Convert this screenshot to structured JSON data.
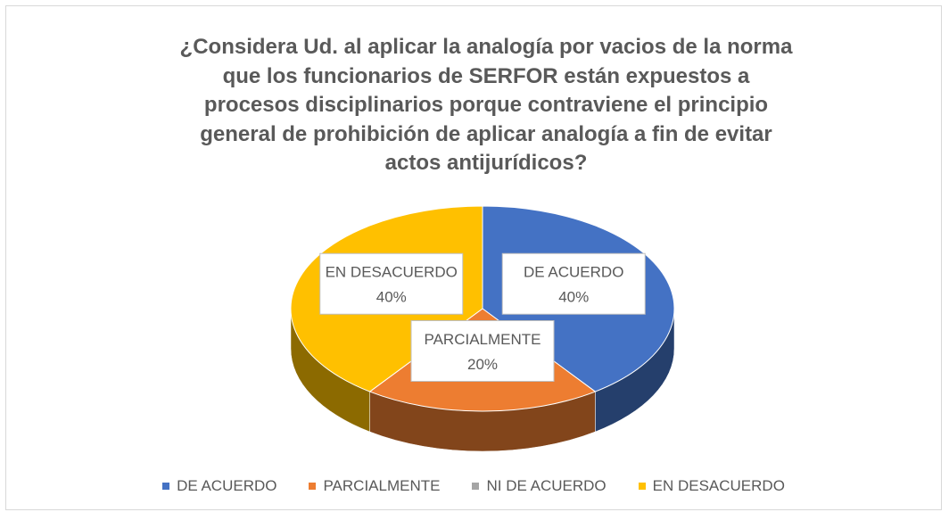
{
  "chart_data": {
    "type": "pie",
    "title": "¿Considera Ud. al aplicar la analogía por vacios de la norma que los funcionarios de SERFOR están expuestos a procesos disciplinarios porque contraviene el principio general de prohibición de aplicar analogía a fin de evitar actos antijurídicos?",
    "categories": [
      "DE ACUERDO",
      "PARCIALMENTE",
      "NI DE ACUERDO",
      "EN DESACUERDO"
    ],
    "values": [
      40,
      20,
      0,
      40
    ],
    "value_labels": [
      "40%",
      "20%",
      null,
      "40%"
    ],
    "colors": [
      "#4472c4",
      "#ed7d31",
      "#a5a5a5",
      "#ffc000"
    ],
    "legend": "bottom"
  }
}
